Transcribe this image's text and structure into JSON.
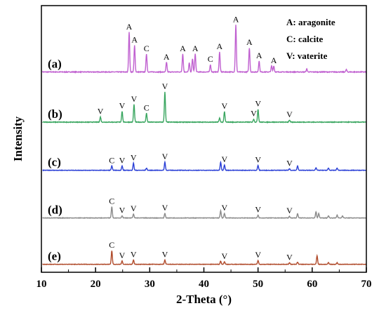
{
  "chart_data": {
    "type": "line",
    "title": "",
    "xlabel": "2-Theta (°)",
    "ylabel": "Intensity",
    "xlim": [
      10,
      70
    ],
    "x_ticks": [
      10,
      20,
      30,
      40,
      50,
      60,
      70
    ],
    "y_ticks": [],
    "grid": false,
    "legend_placement": "top-right",
    "legend": [
      {
        "key": "A",
        "text": "A: aragonite"
      },
      {
        "key": "C",
        "text": "C: calcite"
      },
      {
        "key": "V",
        "text": "V: vaterite"
      }
    ],
    "series": [
      {
        "name": "(a)",
        "color": "#c060d0",
        "baseline": 0.04,
        "noise": 0.012,
        "peaks": [
          {
            "x": 26.2,
            "h": 0.66,
            "label": "A"
          },
          {
            "x": 27.2,
            "h": 0.44,
            "label": "A"
          },
          {
            "x": 29.4,
            "h": 0.3,
            "label": "C"
          },
          {
            "x": 33.1,
            "h": 0.16,
            "label": "A"
          },
          {
            "x": 36.1,
            "h": 0.3,
            "label": "A"
          },
          {
            "x": 37.3,
            "h": 0.15,
            "label": ""
          },
          {
            "x": 37.9,
            "h": 0.22,
            "label": ""
          },
          {
            "x": 38.4,
            "h": 0.3,
            "label": "A"
          },
          {
            "x": 41.2,
            "h": 0.12,
            "label": "C"
          },
          {
            "x": 42.9,
            "h": 0.33,
            "label": "A"
          },
          {
            "x": 45.9,
            "h": 0.78,
            "label": "A"
          },
          {
            "x": 48.4,
            "h": 0.4,
            "label": "A"
          },
          {
            "x": 50.2,
            "h": 0.18,
            "label": "A"
          },
          {
            "x": 52.5,
            "h": 0.1,
            "label": ""
          },
          {
            "x": 52.9,
            "h": 0.1,
            "label": "A"
          },
          {
            "x": 59.0,
            "h": 0.05,
            "label": ""
          },
          {
            "x": 66.3,
            "h": 0.04,
            "label": ""
          }
        ]
      },
      {
        "name": "(b)",
        "color": "#3aa660",
        "baseline": 0.04,
        "noise": 0.012,
        "peaks": [
          {
            "x": 20.9,
            "h": 0.1,
            "label": "V"
          },
          {
            "x": 24.9,
            "h": 0.21,
            "label": "V"
          },
          {
            "x": 27.1,
            "h": 0.34,
            "label": "V"
          },
          {
            "x": 29.4,
            "h": 0.17,
            "label": "C"
          },
          {
            "x": 32.8,
            "h": 0.58,
            "label": "V"
          },
          {
            "x": 42.9,
            "h": 0.08,
            "label": ""
          },
          {
            "x": 43.8,
            "h": 0.2,
            "label": "V"
          },
          {
            "x": 49.2,
            "h": 0.06,
            "label": "V"
          },
          {
            "x": 50.0,
            "h": 0.25,
            "label": "V"
          },
          {
            "x": 55.8,
            "h": 0.04,
            "label": "V"
          }
        ]
      },
      {
        "name": "(c)",
        "color": "#2a3fd6",
        "baseline": 0.03,
        "noise": 0.008,
        "peaks": [
          {
            "x": 23.0,
            "h": 0.08,
            "label": "C"
          },
          {
            "x": 24.9,
            "h": 0.08,
            "label": "V"
          },
          {
            "x": 27.0,
            "h": 0.13,
            "label": "V"
          },
          {
            "x": 29.4,
            "h": 0.04,
            "label": ""
          },
          {
            "x": 32.8,
            "h": 0.15,
            "label": "V"
          },
          {
            "x": 43.1,
            "h": 0.15,
            "label": ""
          },
          {
            "x": 43.8,
            "h": 0.1,
            "label": "V"
          },
          {
            "x": 50.0,
            "h": 0.09,
            "label": "V"
          },
          {
            "x": 55.8,
            "h": 0.03,
            "label": "V"
          },
          {
            "x": 57.3,
            "h": 0.08,
            "label": ""
          },
          {
            "x": 60.7,
            "h": 0.05,
            "label": ""
          },
          {
            "x": 63.0,
            "h": 0.04,
            "label": ""
          },
          {
            "x": 64.6,
            "h": 0.04,
            "label": ""
          }
        ]
      },
      {
        "name": "(d)",
        "color": "#8a8a8a",
        "baseline": 0.03,
        "noise": 0.008,
        "peaks": [
          {
            "x": 23.0,
            "h": 0.2,
            "label": "C"
          },
          {
            "x": 24.9,
            "h": 0.04,
            "label": "V"
          },
          {
            "x": 27.0,
            "h": 0.07,
            "label": "V"
          },
          {
            "x": 32.8,
            "h": 0.08,
            "label": "V"
          },
          {
            "x": 43.1,
            "h": 0.13,
            "label": ""
          },
          {
            "x": 43.8,
            "h": 0.08,
            "label": "V"
          },
          {
            "x": 50.0,
            "h": 0.05,
            "label": "V"
          },
          {
            "x": 55.8,
            "h": 0.03,
            "label": "V"
          },
          {
            "x": 57.3,
            "h": 0.08,
            "label": ""
          },
          {
            "x": 60.7,
            "h": 0.11,
            "label": ""
          },
          {
            "x": 61.2,
            "h": 0.08,
            "label": ""
          },
          {
            "x": 63.0,
            "h": 0.04,
            "label": ""
          },
          {
            "x": 64.6,
            "h": 0.05,
            "label": ""
          },
          {
            "x": 65.6,
            "h": 0.04,
            "label": ""
          }
        ]
      },
      {
        "name": "(e)",
        "color": "#b04a2a",
        "baseline": 0.03,
        "noise": 0.008,
        "peaks": [
          {
            "x": 23.0,
            "h": 0.25,
            "label": "C"
          },
          {
            "x": 24.9,
            "h": 0.06,
            "label": "V"
          },
          {
            "x": 27.0,
            "h": 0.08,
            "label": "V"
          },
          {
            "x": 32.8,
            "h": 0.08,
            "label": "V"
          },
          {
            "x": 43.1,
            "h": 0.06,
            "label": ""
          },
          {
            "x": 43.8,
            "h": 0.05,
            "label": "V"
          },
          {
            "x": 50.0,
            "h": 0.07,
            "label": "V"
          },
          {
            "x": 55.8,
            "h": 0.03,
            "label": "V"
          },
          {
            "x": 57.3,
            "h": 0.04,
            "label": ""
          },
          {
            "x": 60.9,
            "h": 0.16,
            "label": ""
          },
          {
            "x": 63.0,
            "h": 0.03,
            "label": ""
          },
          {
            "x": 64.6,
            "h": 0.03,
            "label": ""
          }
        ]
      }
    ]
  }
}
